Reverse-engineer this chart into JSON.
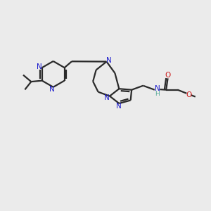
{
  "bg_color": "#ebebeb",
  "bond_color": "#2a2a2a",
  "N_color": "#1a1acc",
  "O_color": "#cc1a1a",
  "H_color": "#5aaa9a",
  "line_width": 1.6,
  "figsize": [
    3.0,
    3.0
  ],
  "dpi": 100,
  "xlim": [
    0,
    10
  ],
  "ylim": [
    0,
    10
  ]
}
